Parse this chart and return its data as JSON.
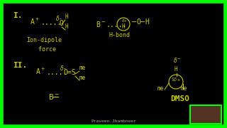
{
  "bg_color": "#000000",
  "border_color": "#00ff00",
  "border_lw": 4,
  "text_color": "#cccc00",
  "white_color": "#ffffff",
  "fig_width": 3.2,
  "fig_height": 1.8,
  "dpi": 100,
  "watermark": "Praveen.Jhambneer",
  "section_I": "I.",
  "section_II": "II.",
  "label_ion_dipole": "Ion-dipole\n  force",
  "label_hbond": "H-bond",
  "label_DMSO": "DMSO",
  "fs": 7,
  "fs_sm": 5.5,
  "fs_label": 6
}
